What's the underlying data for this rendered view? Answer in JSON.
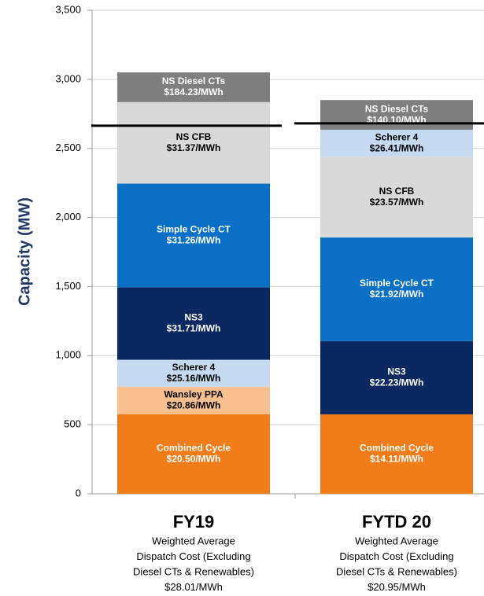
{
  "chart_data": {
    "type": "stacked_bar",
    "ylabel": "Capacity (MW)",
    "ylim": [
      0,
      3500
    ],
    "yticks": [
      0,
      500,
      {
        "value": 1000,
        "label": "1,000"
      },
      {
        "value": 1500,
        "label": "1,500"
      },
      {
        "value": 2000,
        "label": "2,000"
      },
      {
        "value": 2500,
        "label": "2,500"
      },
      {
        "value": 3000,
        "label": "3,000"
      },
      {
        "value": 3500,
        "label": "3,500"
      }
    ],
    "grid": true,
    "groups": [
      {
        "category": "FY19",
        "note": [
          "Weighted Average",
          "Dispatch Cost (Excluding",
          "Diesel CTs & Renewables)",
          "$28.01/MWh"
        ],
        "marker_line": 2664,
        "segments": [
          {
            "name": "Combined Cycle",
            "label": "$20.50/MWh",
            "value": 575,
            "color": "#f07c1a"
          },
          {
            "name": "Wansley PPA",
            "label": "$20.86/MWh",
            "value": 200,
            "color": "#f8c08f"
          },
          {
            "name": "Scherer 4",
            "label": "$25.16/MWh",
            "value": 195,
            "color": "#c5d9f1"
          },
          {
            "name": "NS3",
            "label": "$31.71/MWh",
            "value": 525,
            "color": "#0c2861"
          },
          {
            "name": "Simple Cycle CT",
            "label": "$31.26/MWh",
            "value": 750,
            "color": "#0a70c6"
          },
          {
            "name": "NS CFB",
            "label": "$31.37/MWh",
            "value": 590,
            "color": "#d9d9d9"
          },
          {
            "name": "NS Diesel CTs",
            "label": "$184.23/MWh",
            "value": 215,
            "color": "#7f7f7f"
          }
        ]
      },
      {
        "category": "FYTD 20",
        "note": [
          "Weighted Average",
          "Dispatch Cost (Excluding",
          "Diesel CTs & Renewables)",
          "$20.95/MWh"
        ],
        "marker_line": 2681,
        "segments": [
          {
            "name": "Combined Cycle",
            "label": "$14.11/MWh",
            "value": 575,
            "color": "#f07c1a"
          },
          {
            "name": "NS3",
            "label": "$22.23/MWh",
            "value": 530,
            "color": "#0c2861"
          },
          {
            "name": "Simple Cycle CT",
            "label": "$21.92/MWh",
            "value": 750,
            "color": "#0a70c6"
          },
          {
            "name": "NS CFB",
            "label": "$23.57/MWh",
            "value": 585,
            "color": "#d9d9d9"
          },
          {
            "name": "Scherer 4",
            "label": "$26.41/MWh",
            "value": 195,
            "color": "#c5d9f1"
          },
          {
            "name": "NS Diesel CTs",
            "label": "$140.10/MWh",
            "value": 215,
            "color": "#7f7f7f"
          }
        ]
      }
    ]
  }
}
